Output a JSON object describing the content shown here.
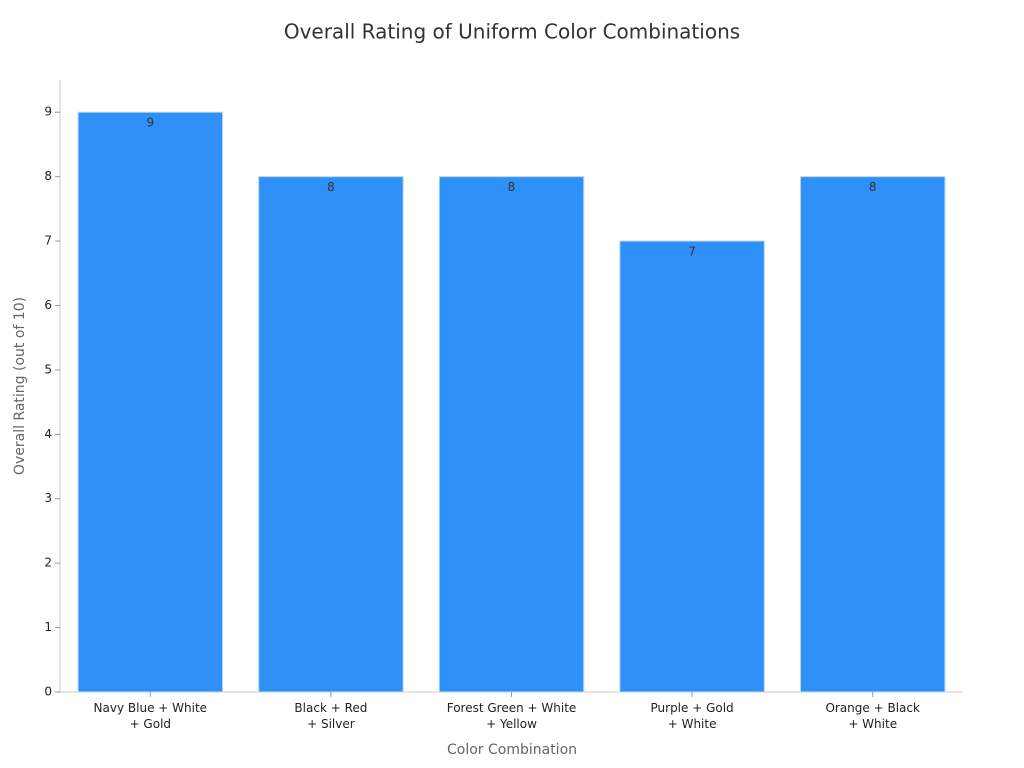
{
  "chart_data": {
    "type": "bar",
    "title": "Overall Rating of Uniform Color Combinations",
    "x_label": "Color Combination",
    "y_label": "Overall Rating (out of 10)",
    "categories": [
      "Navy Blue + White\n+ Gold",
      "Black + Red\n+ Silver",
      "Forest Green + White\n+ Yellow",
      "Purple + Gold\n+ White",
      "Orange + Black\n+ White"
    ],
    "values": [
      9,
      8,
      8,
      7,
      8
    ],
    "color": "#2f91f7",
    "ylim": [
      0,
      9.5
    ],
    "yticks": [
      0,
      1,
      2,
      3,
      4,
      5,
      6,
      7,
      8,
      9
    ],
    "grid": false
  }
}
